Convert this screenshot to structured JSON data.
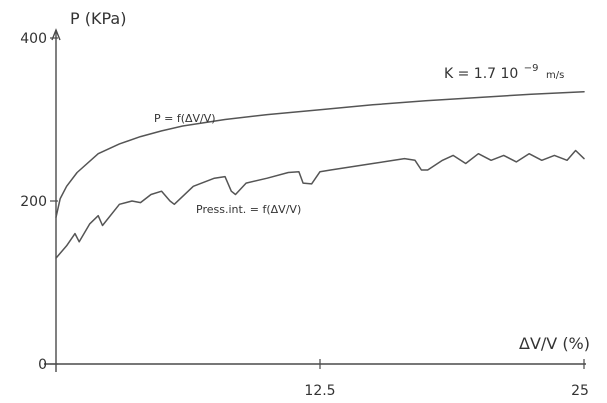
{
  "chart_data": {
    "type": "line",
    "title": "",
    "xlabel": "ΔV/V (%)",
    "ylabel": "P (KPa)",
    "xlim": [
      0,
      25
    ],
    "ylim": [
      0,
      400
    ],
    "x_ticks": [
      "12.5",
      "25"
    ],
    "y_ticks": [
      "0",
      "200",
      "400"
    ],
    "grid": false,
    "legend": "none",
    "annotation": {
      "prefix": "K = 1.7 10",
      "exponent": "−9",
      "unit": "m/s"
    },
    "series": [
      {
        "name": "P = f(ΔV/V)",
        "x": [
          0,
          0.2,
          0.5,
          1,
          2,
          3,
          4,
          5,
          6,
          8,
          10,
          12.5,
          15,
          17.5,
          20,
          22.5,
          25
        ],
        "values": [
          180,
          203,
          218,
          235,
          258,
          270,
          279,
          286,
          292,
          300,
          306,
          312,
          318,
          323,
          327,
          331,
          334
        ]
      },
      {
        "name": "Press.int. = f(ΔV/V)",
        "x": [
          0,
          0.5,
          0.9,
          1.1,
          1.6,
          2,
          2.2,
          3,
          3.6,
          4,
          4.5,
          5,
          5.4,
          5.6,
          6.5,
          7.5,
          8,
          8.3,
          8.5,
          9,
          10,
          11,
          11.5,
          11.7,
          12.1,
          12.5,
          13,
          14,
          15,
          16,
          16.5,
          17,
          17.3,
          17.6,
          18.3,
          18.8,
          19.4,
          20,
          20.6,
          21.2,
          21.8,
          22.4,
          23,
          23.6,
          24.2,
          24.6,
          25
        ],
        "values": [
          130,
          145,
          160,
          150,
          172,
          182,
          170,
          196,
          200,
          198,
          208,
          212,
          200,
          196,
          218,
          228,
          230,
          212,
          208,
          222,
          228,
          235,
          236,
          222,
          221,
          236,
          238,
          242,
          246,
          250,
          252,
          250,
          238,
          238,
          250,
          256,
          246,
          258,
          250,
          256,
          248,
          258,
          250,
          256,
          250,
          262,
          252
        ]
      }
    ]
  }
}
